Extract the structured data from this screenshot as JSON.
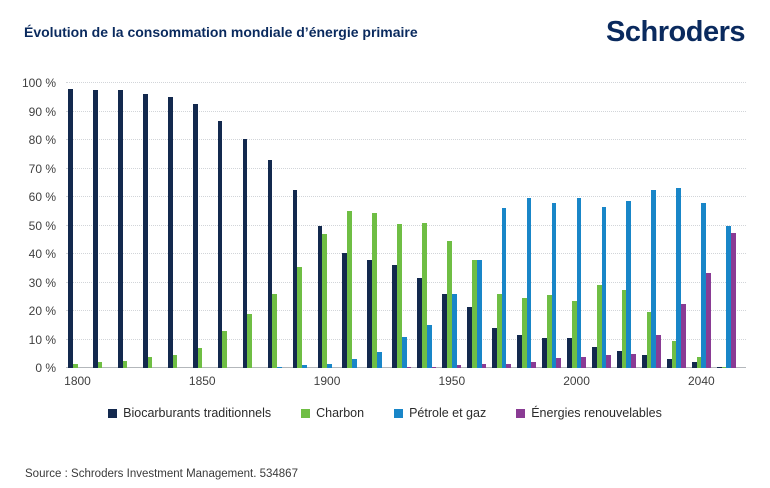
{
  "header": {
    "title": "Évolution de la consommation mondiale d’énergie primaire",
    "logo": "Schroders",
    "brand_color": "#0a2a5e"
  },
  "source": "Source : Schroders Investment Management. 534867",
  "chart_data": {
    "type": "bar",
    "grouped": true,
    "title": "Évolution de la consommation mondiale d’énergie primaire",
    "xlabel": "",
    "ylabel": "",
    "ylim": [
      0,
      100
    ],
    "grid": "horizontal-dotted",
    "legend_position": "bottom",
    "y_tick_labels": [
      "0 %",
      "10 %",
      "20 %",
      "30 %",
      "40 %",
      "50 %",
      "60 %",
      "70 %",
      "80 %",
      "90 %",
      "100 %"
    ],
    "categories": [
      "1800",
      "1810",
      "1820",
      "1830",
      "1840",
      "1850",
      "1860",
      "1870",
      "1880",
      "1890",
      "1900",
      "1910",
      "1920",
      "1930",
      "1940",
      "1950",
      "1960",
      "1970",
      "1980",
      "1990",
      "2000",
      "2010",
      "2020",
      "2025",
      "2030",
      "2040",
      "2050"
    ],
    "x_tick_indices": [
      0,
      5,
      10,
      15,
      20,
      25
    ],
    "x_tick_labels": [
      "1800",
      "1850",
      "1900",
      "1950",
      "2000",
      "2040"
    ],
    "series": [
      {
        "name": "Biocarburants traditionnels",
        "color": "#13294e",
        "values": [
          98,
          97.5,
          97.5,
          96,
          95,
          92.5,
          86.5,
          80.5,
          73,
          62.5,
          50,
          40.5,
          38,
          36,
          31.5,
          26,
          21.5,
          14,
          11.5,
          10.5,
          10.5,
          7.5,
          6,
          4.5,
          3,
          2,
          0.5
        ]
      },
      {
        "name": "Charbon",
        "color": "#6fbe44",
        "values": [
          1.5,
          2,
          2.5,
          4,
          4.5,
          7,
          13,
          19,
          26,
          35.5,
          47,
          55,
          54.5,
          50.5,
          51,
          44.5,
          38,
          26,
          24.5,
          25.5,
          23.5,
          29,
          27.5,
          19.5,
          9.5,
          4,
          0.5
        ]
      },
      {
        "name": "Pétrole et gaz",
        "color": "#1986c8",
        "values": [
          0,
          0,
          0,
          0,
          0,
          0,
          0,
          0,
          0.5,
          1,
          1.5,
          3,
          5.5,
          11,
          15,
          26,
          38,
          56,
          59.5,
          58,
          59.5,
          56.5,
          58.5,
          62.5,
          63,
          58,
          50
        ]
      },
      {
        "name": "Énergies renouvelables",
        "color": "#8a3b94",
        "values": [
          0,
          0,
          0,
          0,
          0,
          0,
          0,
          0,
          0,
          0,
          0,
          0,
          0,
          0.5,
          0.5,
          1,
          1.5,
          1.5,
          2,
          3.5,
          4,
          4.5,
          5,
          11.5,
          22.5,
          33.5,
          47.5
        ]
      }
    ]
  }
}
